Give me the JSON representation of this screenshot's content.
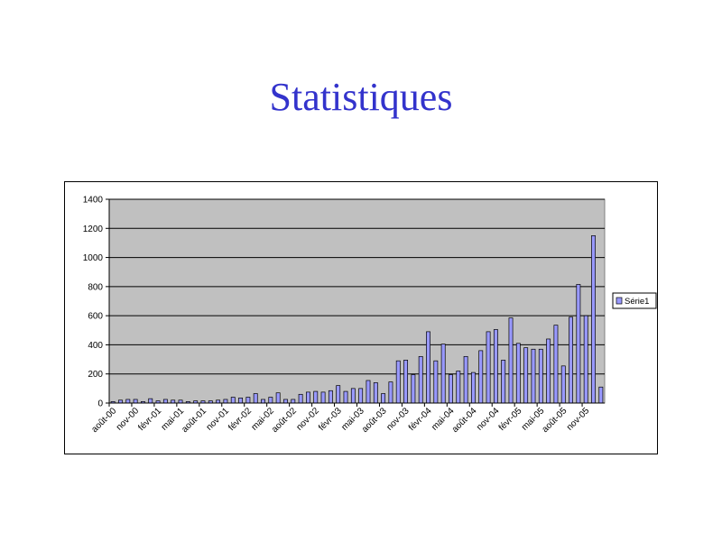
{
  "slide": {
    "title": "Statistiques"
  },
  "chart_data": {
    "type": "bar",
    "title": "",
    "xlabel": "",
    "ylabel": "",
    "ylim": [
      0,
      1400
    ],
    "yticks": [
      0,
      200,
      400,
      600,
      800,
      1000,
      1200,
      1400
    ],
    "grid": true,
    "legend_position": "right",
    "plot_background": "#c0c0c0",
    "bar_color": "#9999ff",
    "categories": [
      "août-00",
      "sept-00",
      "oct-00",
      "nov-00",
      "déc-00",
      "janv-01",
      "févr-01",
      "mars-01",
      "avr-01",
      "mai-01",
      "juin-01",
      "juil-01",
      "août-01",
      "sept-01",
      "oct-01",
      "nov-01",
      "déc-01",
      "janv-02",
      "févr-02",
      "mars-02",
      "avr-02",
      "mai-02",
      "juin-02",
      "juil-02",
      "août-02",
      "sept-02",
      "oct-02",
      "nov-02",
      "déc-02",
      "janv-03",
      "févr-03",
      "mars-03",
      "avr-03",
      "mai-03",
      "juin-03",
      "juil-03",
      "août-03",
      "sept-03",
      "oct-03",
      "nov-03",
      "déc-03",
      "janv-04",
      "févr-04",
      "mars-04",
      "avr-04",
      "mai-04",
      "juin-04",
      "juil-04",
      "août-04",
      "sept-04",
      "oct-04",
      "nov-04",
      "déc-04",
      "janv-05",
      "févr-05",
      "mars-05",
      "avr-05",
      "mai-05",
      "juin-05",
      "juil-05",
      "août-05",
      "sept-05",
      "oct-05",
      "nov-05",
      "déc-05",
      "janv-06"
    ],
    "tick_labels": [
      "août-00",
      "nov-00",
      "févr-01",
      "mai-01",
      "août-01",
      "nov-01",
      "févr-02",
      "mai-02",
      "août-02",
      "nov-02",
      "févr-03",
      "mai-03",
      "août-03",
      "nov-03",
      "févr-04",
      "mai-04",
      "août-04",
      "nov-04",
      "févr-05",
      "mai-05",
      "août-05",
      "nov-05"
    ],
    "series": [
      {
        "name": "Série1",
        "values": [
          10,
          20,
          25,
          25,
          10,
          30,
          15,
          25,
          20,
          20,
          10,
          15,
          15,
          15,
          20,
          25,
          40,
          35,
          40,
          65,
          25,
          40,
          70,
          25,
          25,
          60,
          75,
          80,
          75,
          85,
          120,
          80,
          100,
          100,
          155,
          140,
          65,
          145,
          290,
          295,
          195,
          320,
          490,
          290,
          405,
          195,
          220,
          320,
          210,
          360,
          490,
          505,
          295,
          585,
          410,
          380,
          370,
          370,
          440,
          535,
          255,
          590,
          815,
          600,
          1150,
          110
        ]
      }
    ]
  }
}
